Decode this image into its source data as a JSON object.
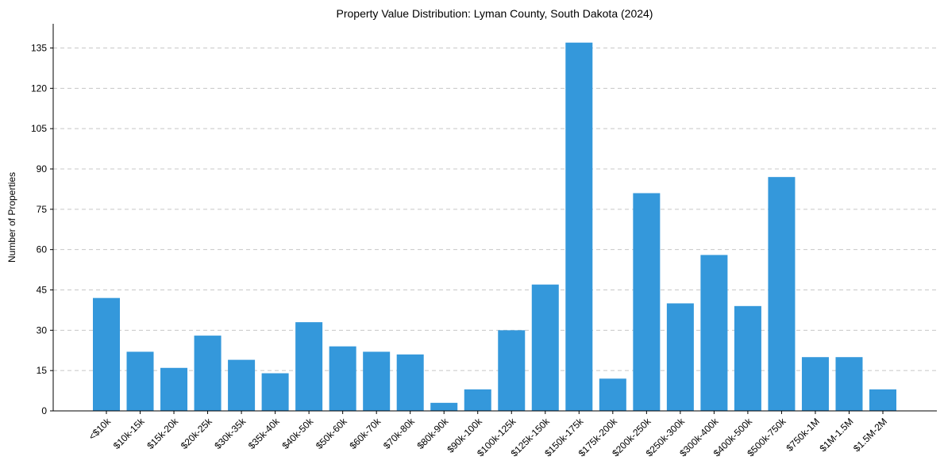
{
  "chart_data": {
    "type": "bar",
    "title": "Property Value Distribution: Lyman County, South Dakota (2024)",
    "xlabel": "",
    "ylabel": "Number of Properties",
    "ylim": [
      0,
      144
    ],
    "yticks": [
      0,
      15,
      30,
      45,
      60,
      75,
      90,
      105,
      120,
      135
    ],
    "grid": "horizontal-dashed",
    "categories": [
      "<$10k",
      "$10k-15k",
      "$15k-20k",
      "$20k-25k",
      "$30k-35k",
      "$35k-40k",
      "$40k-50k",
      "$50k-60k",
      "$60k-70k",
      "$70k-80k",
      "$80k-90k",
      "$90k-100k",
      "$100k-125k",
      "$125k-150k",
      "$150k-175k",
      "$175k-200k",
      "$200k-250k",
      "$250k-300k",
      "$300k-400k",
      "$400k-500k",
      "$500k-750k",
      "$750k-1M",
      "$1M-1.5M",
      "$1.5M-2M"
    ],
    "values": [
      42,
      22,
      16,
      28,
      19,
      14,
      33,
      24,
      22,
      21,
      3,
      8,
      30,
      47,
      137,
      12,
      81,
      40,
      58,
      39,
      87,
      20,
      20,
      8
    ],
    "bar_color": "#3498db"
  }
}
